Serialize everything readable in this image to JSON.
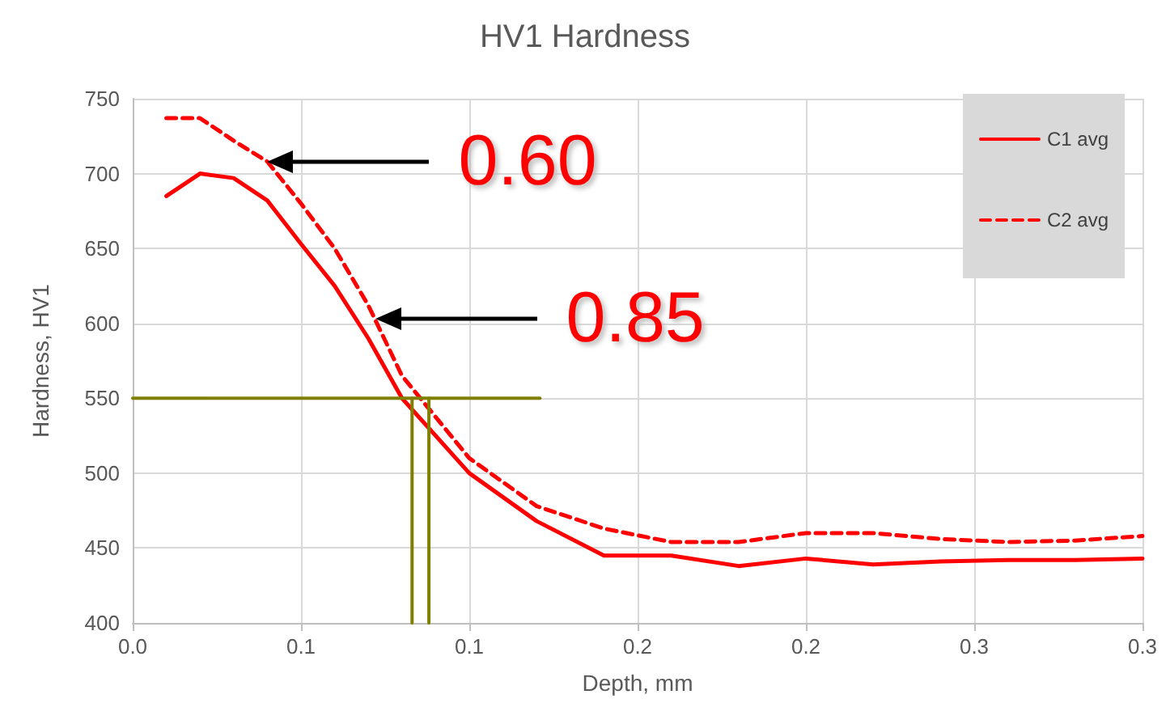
{
  "chart_data": {
    "type": "line",
    "title": "HV1 Hardness",
    "xlabel": "Depth, mm",
    "ylabel": "Hardness, HV1",
    "xlim": [
      0,
      0.3
    ],
    "xticks": [
      {
        "value": 0,
        "label": "0.0"
      },
      {
        "value": 0.05,
        "label": "0.1"
      },
      {
        "value": 0.1,
        "label": "0.1"
      },
      {
        "value": 0.15,
        "label": "0.2"
      },
      {
        "value": 0.2,
        "label": "0.2"
      },
      {
        "value": 0.25,
        "label": "0.3"
      },
      {
        "value": 0.3,
        "label": "0.3"
      }
    ],
    "ylim": [
      400,
      750
    ],
    "yticks": [
      400,
      450,
      500,
      550,
      600,
      650,
      700,
      750
    ],
    "grid": true,
    "legend": "top right",
    "marker": "none",
    "series": [
      {
        "name": "C1 avg",
        "color": "#ff0000",
        "line_style": "solid",
        "x": [
          0.01,
          0.02,
          0.03,
          0.04,
          0.05,
          0.06,
          0.07,
          0.08,
          0.1,
          0.12,
          0.14,
          0.16,
          0.18,
          0.2,
          0.22,
          0.24,
          0.26,
          0.28,
          0.3
        ],
        "values": [
          685,
          700,
          697,
          682,
          653,
          625,
          590,
          550,
          500,
          468,
          445,
          445,
          438,
          443,
          439,
          441,
          442,
          442,
          443
        ]
      },
      {
        "name": "C2 avg",
        "color": "#ff0000",
        "line_style": "dashed",
        "x": [
          0.01,
          0.02,
          0.03,
          0.04,
          0.05,
          0.06,
          0.07,
          0.08,
          0.1,
          0.12,
          0.14,
          0.16,
          0.18,
          0.2,
          0.22,
          0.24,
          0.26,
          0.28,
          0.3
        ],
        "values": [
          737,
          737,
          722,
          708,
          680,
          650,
          612,
          565,
          510,
          478,
          463,
          454,
          454,
          460,
          460,
          456,
          454,
          455,
          458
        ]
      },
      {
        "color": "#7f7f00",
        "line_style": "solid",
        "x": [
          0,
          0.121
        ],
        "values": [
          550,
          550
        ]
      },
      {
        "color": "#7f7f00",
        "line_style": "solid",
        "x": [
          0.083,
          0.083
        ],
        "values": [
          550,
          400
        ]
      },
      {
        "color": "#7f7f00",
        "line_style": "solid",
        "x": [
          0.088,
          0.088
        ],
        "values": [
          550,
          400
        ]
      }
    ],
    "annotations": [
      {
        "text": "0.60",
        "x": 0.04,
        "y": 708
      },
      {
        "text": "0.85",
        "x": 0.072,
        "y": 603
      }
    ]
  }
}
